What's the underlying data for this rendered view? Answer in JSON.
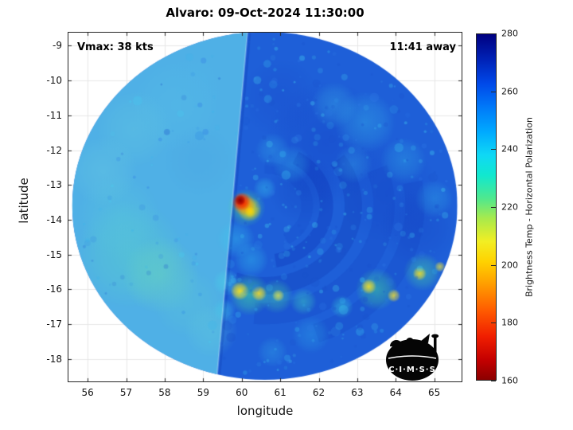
{
  "title": "Alvaro: 09-Oct-2024 11:30:00",
  "annotations": {
    "vmax": "Vmax: 38 kts",
    "away": "11:41 away"
  },
  "axes": {
    "x": {
      "label": "longitude",
      "ticks": [
        56,
        57,
        58,
        59,
        60,
        61,
        62,
        63,
        64,
        65
      ],
      "range": [
        55.48,
        65.73
      ]
    },
    "y": {
      "label": "latitude",
      "ticks": [
        -9,
        -10,
        -11,
        -12,
        -13,
        -14,
        -15,
        -16,
        -17,
        -18
      ],
      "range": [
        -8.6,
        -18.67
      ]
    }
  },
  "colorbar": {
    "label": "Brightness Temp - Horizontal Polarization",
    "ticks": [
      160,
      180,
      200,
      220,
      240,
      260,
      280
    ],
    "min": 160,
    "max": 280,
    "stops": [
      {
        "v": 160,
        "c": "#8b0000"
      },
      {
        "v": 167,
        "c": "#c40000"
      },
      {
        "v": 175,
        "c": "#f01e00"
      },
      {
        "v": 184,
        "c": "#ff5a00"
      },
      {
        "v": 193,
        "c": "#ff9c00"
      },
      {
        "v": 201,
        "c": "#ffd200"
      },
      {
        "v": 208,
        "c": "#f2ee23"
      },
      {
        "v": 216,
        "c": "#a8ea4c"
      },
      {
        "v": 223,
        "c": "#4fe88e"
      },
      {
        "v": 231,
        "c": "#11e8cf"
      },
      {
        "v": 238,
        "c": "#0fd8f5"
      },
      {
        "v": 246,
        "c": "#00aaff"
      },
      {
        "v": 255,
        "c": "#0077f8"
      },
      {
        "v": 263,
        "c": "#0048e8"
      },
      {
        "v": 271,
        "c": "#0023b8"
      },
      {
        "v": 280,
        "c": "#000080"
      }
    ]
  },
  "logo": {
    "text": "C·I·M·S·S"
  },
  "chart_data": {
    "type": "heatmap",
    "title": "Alvaro: 09-Oct-2024 11:30:00",
    "storm_name": "Alvaro",
    "datetime": "09-Oct-2024 11:30:00",
    "vmax_kts": 38,
    "time_away": "11:41",
    "xlabel": "longitude",
    "ylabel": "latitude",
    "xlim": [
      55.48,
      65.73
    ],
    "ylim": [
      -18.67,
      -8.6
    ],
    "colorbar_label": "Brightness Temp - Horizontal Polarization",
    "colorbar_range": [
      160,
      280
    ],
    "colorbar_ticks": [
      160,
      180,
      200,
      220,
      240,
      260,
      280
    ],
    "disk": {
      "center_lon": 60.6,
      "center_lat": -13.6,
      "radius_deg": 5.0
    },
    "seam": {
      "top_lon": 60.15,
      "bottom_lon": 59.35
    },
    "base_colors": {
      "right": "#1e5fd8",
      "left": "#4fb0e6"
    },
    "bands": [
      {
        "r": 1.1,
        "a0": -90,
        "a1": 60,
        "c": "rgba(20,70,200,0.25)",
        "w": 0.3
      },
      {
        "r": 1.6,
        "a0": -60,
        "a1": 80,
        "c": "rgba(12,48,180,0.30)",
        "w": 0.35
      },
      {
        "r": 2.3,
        "a0": -35,
        "a1": 110,
        "c": "rgba(10,40,170,0.22)",
        "w": 0.45
      },
      {
        "r": 3.1,
        "a0": -20,
        "a1": 95,
        "c": "rgba(16,56,190,0.20)",
        "w": 0.55
      },
      {
        "r": 3.9,
        "a0": -10,
        "a1": 70,
        "c": "rgba(14,50,180,0.16)",
        "w": 0.5
      }
    ],
    "blobs": [
      [
        57.1,
        -15.0,
        1.4,
        "#5ad2c8",
        0.45
      ],
      [
        57.9,
        -15.6,
        1.0,
        "#6fdcb4",
        0.4
      ],
      [
        56.8,
        -13.9,
        1.1,
        "#58c8dc",
        0.4
      ],
      [
        58.3,
        -10.7,
        1.2,
        "#55bce8",
        0.45
      ],
      [
        57.2,
        -11.4,
        1.0,
        "#62c8e0",
        0.38
      ],
      [
        56.4,
        -12.6,
        0.9,
        "#6cd0e0",
        0.32
      ],
      [
        58.9,
        -12.3,
        0.9,
        "#4aa4e4",
        0.35
      ],
      [
        58.6,
        -16.4,
        0.9,
        "#5cc8d4",
        0.33
      ],
      [
        59.2,
        -17.2,
        0.7,
        "#64d0d8",
        0.3
      ],
      [
        58.9,
        -9.9,
        0.8,
        "#50b4e8",
        0.35
      ],
      [
        62.2,
        -11.8,
        1.6,
        "#1038c0",
        0.3
      ],
      [
        63.8,
        -13.2,
        1.3,
        "#1240c4",
        0.28
      ],
      [
        61.6,
        -13.1,
        0.9,
        "#0f38b8",
        0.25
      ],
      [
        64.6,
        -14.2,
        1.0,
        "#1138bc",
        0.25
      ],
      [
        61.0,
        -10.5,
        1.0,
        "#1844c8",
        0.25
      ],
      [
        63.2,
        -11.2,
        0.8,
        "#3cc8f0",
        0.35
      ],
      [
        64.2,
        -12.3,
        0.6,
        "#38c4ee",
        0.3
      ],
      [
        62.4,
        -10.7,
        0.6,
        "#44ccf0",
        0.3
      ],
      [
        65.0,
        -13.4,
        0.5,
        "#38c8f0",
        0.28
      ],
      [
        62.9,
        -12.4,
        0.5,
        "#40c8ee",
        0.25
      ],
      [
        59.85,
        -14.55,
        0.5,
        "#38ccf2",
        0.4
      ],
      [
        60.25,
        -15.15,
        0.45,
        "#34c8f0",
        0.38
      ],
      [
        61.3,
        -12.4,
        0.5,
        "#38c4f0",
        0.3
      ],
      [
        60.8,
        -12.0,
        0.45,
        "#3cc8f0",
        0.28
      ],
      [
        59.6,
        -15.8,
        0.35,
        "#48d4e8",
        0.5
      ],
      [
        59.55,
        -16.6,
        0.3,
        "#44d0e8",
        0.45
      ],
      [
        60.2,
        -16.15,
        0.55,
        "#46e09a",
        0.55
      ],
      [
        60.9,
        -16.2,
        0.45,
        "#48dca0",
        0.45
      ],
      [
        59.95,
        -16.05,
        0.24,
        "#ffe41e",
        0.9
      ],
      [
        60.45,
        -16.12,
        0.2,
        "#fadc28",
        0.85
      ],
      [
        60.95,
        -16.18,
        0.16,
        "#e8e448",
        0.75
      ],
      [
        61.6,
        -16.35,
        0.35,
        "#40d8c0",
        0.45
      ],
      [
        63.5,
        -16.0,
        0.55,
        "#44dc9c",
        0.5
      ],
      [
        64.7,
        -15.5,
        0.5,
        "#4cdc9c",
        0.45
      ],
      [
        63.3,
        -15.92,
        0.2,
        "#ffe41e",
        0.85
      ],
      [
        63.95,
        -16.18,
        0.17,
        "#f6e030",
        0.8
      ],
      [
        64.62,
        -15.55,
        0.18,
        "#ffe41e",
        0.8
      ],
      [
        65.15,
        -15.35,
        0.14,
        "#eee43c",
        0.72
      ],
      [
        62.6,
        -16.5,
        0.3,
        "#38d0d8",
        0.45
      ],
      [
        61.8,
        -17.3,
        0.5,
        "#30b8ec",
        0.3
      ],
      [
        60.8,
        -17.8,
        0.4,
        "#38c0ec",
        0.28
      ],
      [
        60.6,
        -13.1,
        0.3,
        "#38ccf0",
        0.4
      ],
      [
        60.12,
        -13.65,
        0.5,
        "#52e08c",
        0.55
      ],
      [
        60.2,
        -13.7,
        0.32,
        "#ffe000",
        0.85
      ],
      [
        60.05,
        -13.55,
        0.3,
        "#ff8c00",
        0.92
      ],
      [
        59.99,
        -13.48,
        0.24,
        "#f01800",
        1
      ],
      [
        59.96,
        -13.44,
        0.14,
        "#8f0000",
        1
      ],
      [
        60.22,
        -13.78,
        0.14,
        "#ffd800",
        0.8
      ]
    ],
    "speckles": {
      "seed": 11,
      "count": 520,
      "colors": [
        "#37b6ee",
        "#2f8ce6",
        "#1b52cc",
        "#2e79e6",
        "#45d2f2"
      ],
      "rmin": 1.2,
      "rmax": 4.0
    }
  }
}
